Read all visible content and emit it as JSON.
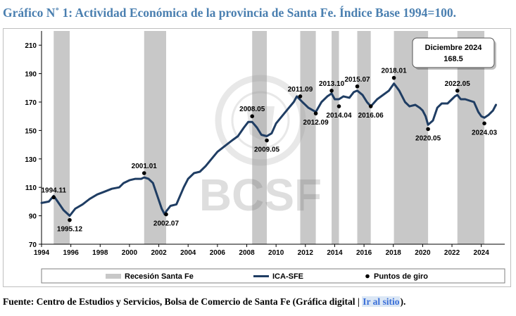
{
  "title": "Gráfico N˚ 1: Actividad Económica de la provincia de Santa Fe. Índice Base 1994=100.",
  "footer": {
    "prefix": "Fuente: Centro de Estudios y Servicios, Bolsa de Comercio de Santa Fe (Gráfica digital | ",
    "link": "Ir al sitio",
    "suffix": ")."
  },
  "watermark": {
    "text": "BCSF",
    "seal_text": "BOLSA DE COMERCIO DE SANTA FE"
  },
  "colors": {
    "line": "#1f3d63",
    "recession": "#c8c8c8",
    "point": "#000000",
    "title": "#4a7fb0",
    "link": "#3a6fd8"
  },
  "chart_data": {
    "type": "line",
    "title": "Actividad Económica de la provincia de Santa Fe",
    "xlim": [
      1994,
      2025.6
    ],
    "ylim": [
      70,
      220
    ],
    "yticks": [
      70,
      90,
      110,
      130,
      150,
      170,
      190,
      210
    ],
    "xticks": [
      1994,
      1996,
      1998,
      2000,
      2002,
      2004,
      2006,
      2008,
      2010,
      2012,
      2014,
      2016,
      2018,
      2020,
      2022,
      2024
    ],
    "series": [
      {
        "name": "ICA-SFE",
        "x": [
          1994.0,
          1994.5,
          1994.83,
          1995.1,
          1995.5,
          1995.92,
          1996.3,
          1996.8,
          1997.3,
          1997.8,
          1998.3,
          1998.8,
          1999.3,
          1999.6,
          2000.0,
          2000.4,
          2000.8,
          2001.0,
          2001.3,
          2001.6,
          2001.9,
          2002.2,
          2002.4,
          2002.5,
          2002.8,
          2003.2,
          2003.7,
          2004.0,
          2004.4,
          2004.8,
          2005.2,
          2005.6,
          2006.0,
          2006.5,
          2007.0,
          2007.4,
          2007.8,
          2008.1,
          2008.37,
          2008.7,
          2009.0,
          2009.37,
          2009.7,
          2010.0,
          2010.4,
          2010.8,
          2011.2,
          2011.42,
          2011.8,
          2012.2,
          2012.71,
          2013.1,
          2013.5,
          2013.79,
          2014.0,
          2014.29,
          2014.6,
          2015.0,
          2015.3,
          2015.54,
          2015.9,
          2016.2,
          2016.46,
          2016.9,
          2017.3,
          2017.7,
          2018.04,
          2018.4,
          2018.8,
          2019.1,
          2019.5,
          2019.8,
          2020.0,
          2020.2,
          2020.37,
          2020.7,
          2021.0,
          2021.3,
          2021.7,
          2022.0,
          2022.2,
          2022.37,
          2022.6,
          2022.9,
          2023.2,
          2023.5,
          2023.8,
          2024.0,
          2024.21,
          2024.5,
          2024.8,
          2025.0
        ],
        "values": [
          99,
          100,
          104,
          100,
          94,
          90,
          95,
          98,
          102,
          105,
          107,
          109,
          110,
          113,
          115,
          116,
          116,
          117,
          116,
          113,
          104,
          95,
          91,
          93,
          97,
          98,
          110,
          116,
          120,
          121,
          125,
          130,
          135,
          139,
          143,
          146,
          152,
          156,
          156,
          152,
          147,
          146,
          148,
          155,
          160,
          165,
          170,
          174,
          170,
          166,
          163,
          170,
          174,
          176,
          172,
          172,
          174,
          173,
          177,
          178,
          175,
          170,
          167,
          172,
          175,
          178,
          183,
          178,
          170,
          167,
          168,
          166,
          164,
          160,
          154,
          157,
          166,
          169,
          169,
          172,
          174,
          175,
          172,
          172,
          171,
          170,
          163,
          160,
          159,
          161,
          164,
          168
        ]
      }
    ],
    "recessions": [
      [
        1994.83,
        1995.92
      ],
      [
        2001.0,
        2002.5
      ],
      [
        2008.37,
        2009.37
      ],
      [
        2011.65,
        2012.71
      ],
      [
        2013.79,
        2014.29
      ],
      [
        2015.54,
        2016.46
      ],
      [
        2018.04,
        2020.37
      ],
      [
        2022.37,
        2024.21
      ]
    ],
    "turning_points": [
      {
        "label": "1994.11",
        "x": 1994.83,
        "y": 103,
        "pos": "above"
      },
      {
        "label": "1995.12",
        "x": 1995.92,
        "y": 87,
        "pos": "below"
      },
      {
        "label": "2001.01",
        "x": 2001.0,
        "y": 120,
        "pos": "above"
      },
      {
        "label": "2002.07",
        "x": 2002.5,
        "y": 91,
        "pos": "below"
      },
      {
        "label": "2008.05",
        "x": 2008.37,
        "y": 160,
        "pos": "above"
      },
      {
        "label": "2009.05",
        "x": 2009.37,
        "y": 143,
        "pos": "below"
      },
      {
        "label": "2011.09",
        "x": 2011.65,
        "y": 174,
        "pos": "above"
      },
      {
        "label": "2012.09",
        "x": 2012.71,
        "y": 162,
        "pos": "below"
      },
      {
        "label": "2013.10",
        "x": 2013.79,
        "y": 178,
        "pos": "above"
      },
      {
        "label": "2014.04",
        "x": 2014.29,
        "y": 167,
        "pos": "below"
      },
      {
        "label": "2015.07",
        "x": 2015.54,
        "y": 181,
        "pos": "above"
      },
      {
        "label": "2016.06",
        "x": 2016.46,
        "y": 167,
        "pos": "below"
      },
      {
        "label": "2018.01",
        "x": 2018.04,
        "y": 187,
        "pos": "above"
      },
      {
        "label": "2020.05",
        "x": 2020.37,
        "y": 151,
        "pos": "below"
      },
      {
        "label": "2022.05",
        "x": 2022.37,
        "y": 178,
        "pos": "above"
      },
      {
        "label": "2024.03",
        "x": 2024.21,
        "y": 155,
        "pos": "below"
      }
    ],
    "annotation": {
      "label": "Diciembre 2024",
      "value": "168.5"
    },
    "legend": [
      "Recesión Santa Fe",
      "ICA-SFE",
      "Puntos de giro"
    ]
  }
}
